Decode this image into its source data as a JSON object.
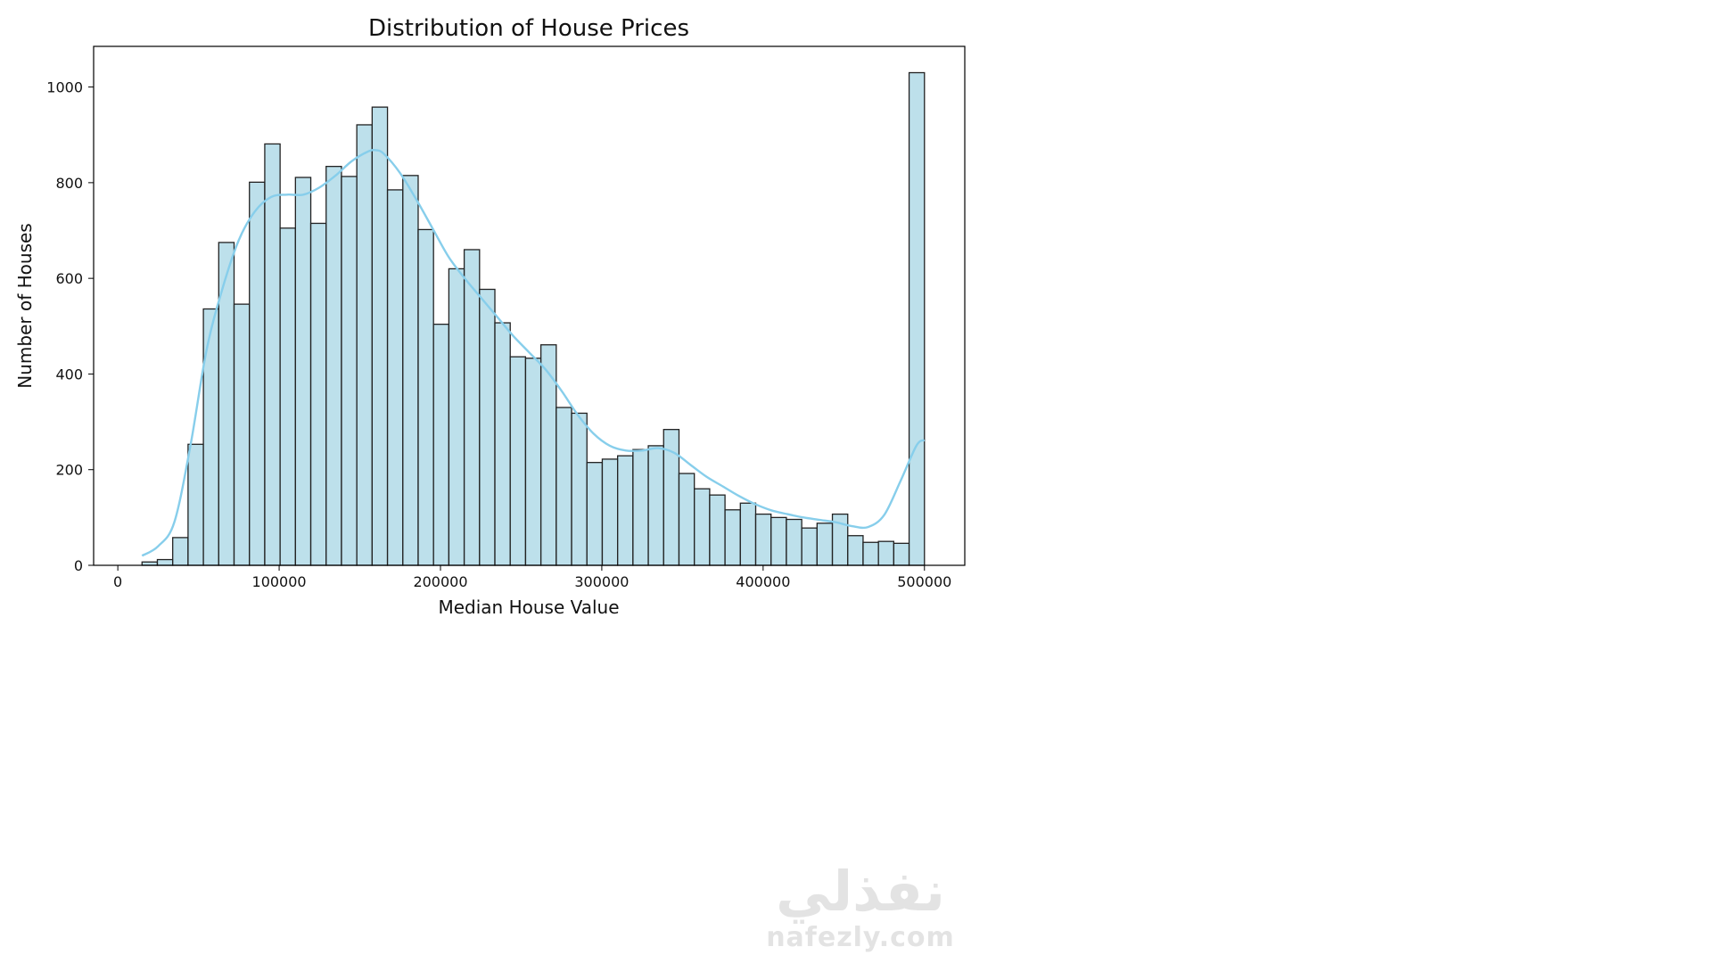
{
  "chart_data": {
    "type": "bar",
    "title": "Distribution of House Prices",
    "xlabel": "Median House Value",
    "ylabel": "Number of Houses",
    "xlim": [
      -15000,
      525000
    ],
    "ylim": [
      0,
      1085
    ],
    "xticks": [
      0,
      100000,
      200000,
      300000,
      400000,
      500000
    ],
    "xtick_labels": [
      "0",
      "100000",
      "200000",
      "300000",
      "400000",
      "500000"
    ],
    "yticks": [
      0,
      200,
      400,
      600,
      800,
      1000
    ],
    "ytick_labels": [
      "0",
      "200",
      "400",
      "600",
      "800",
      "1000"
    ],
    "grid": false,
    "bin_start": 14999,
    "bin_end": 500001,
    "values": [
      7,
      12,
      58,
      253,
      536,
      675,
      546,
      801,
      881,
      705,
      811,
      715,
      834,
      813,
      921,
      958,
      785,
      815,
      702,
      504,
      620,
      660,
      577,
      507,
      436,
      433,
      461,
      330,
      318,
      215,
      222,
      229,
      242,
      250,
      284,
      192,
      160,
      147,
      116,
      130,
      107,
      100,
      96,
      78,
      88,
      107,
      62,
      48,
      50,
      46,
      1030
    ],
    "kde": {
      "x": [
        14999,
        25000,
        35000,
        45000,
        55000,
        65000,
        75000,
        85000,
        95000,
        105000,
        115000,
        125000,
        135000,
        145000,
        155000,
        160000,
        165000,
        175000,
        185000,
        195000,
        205000,
        215000,
        225000,
        235000,
        245000,
        255000,
        265000,
        275000,
        285000,
        295000,
        305000,
        315000,
        325000,
        335000,
        345000,
        355000,
        365000,
        375000,
        385000,
        395000,
        405000,
        415000,
        425000,
        435000,
        445000,
        455000,
        465000,
        475000,
        485000,
        495000,
        500001
      ],
      "y": [
        20,
        40,
        90,
        250,
        450,
        580,
        680,
        740,
        770,
        775,
        775,
        790,
        815,
        845,
        865,
        868,
        860,
        820,
        765,
        705,
        645,
        600,
        560,
        520,
        480,
        445,
        410,
        365,
        315,
        275,
        250,
        240,
        240,
        245,
        235,
        210,
        185,
        165,
        145,
        128,
        115,
        107,
        100,
        95,
        90,
        82,
        80,
        105,
        175,
        250,
        262
      ]
    },
    "colors": {
      "bar_fill": "#add8e6",
      "bar_edge": "#222222",
      "kde_line": "#87ceeb"
    }
  },
  "watermark": {
    "arabic": "نفذلي",
    "latin": "nafezly.com"
  }
}
